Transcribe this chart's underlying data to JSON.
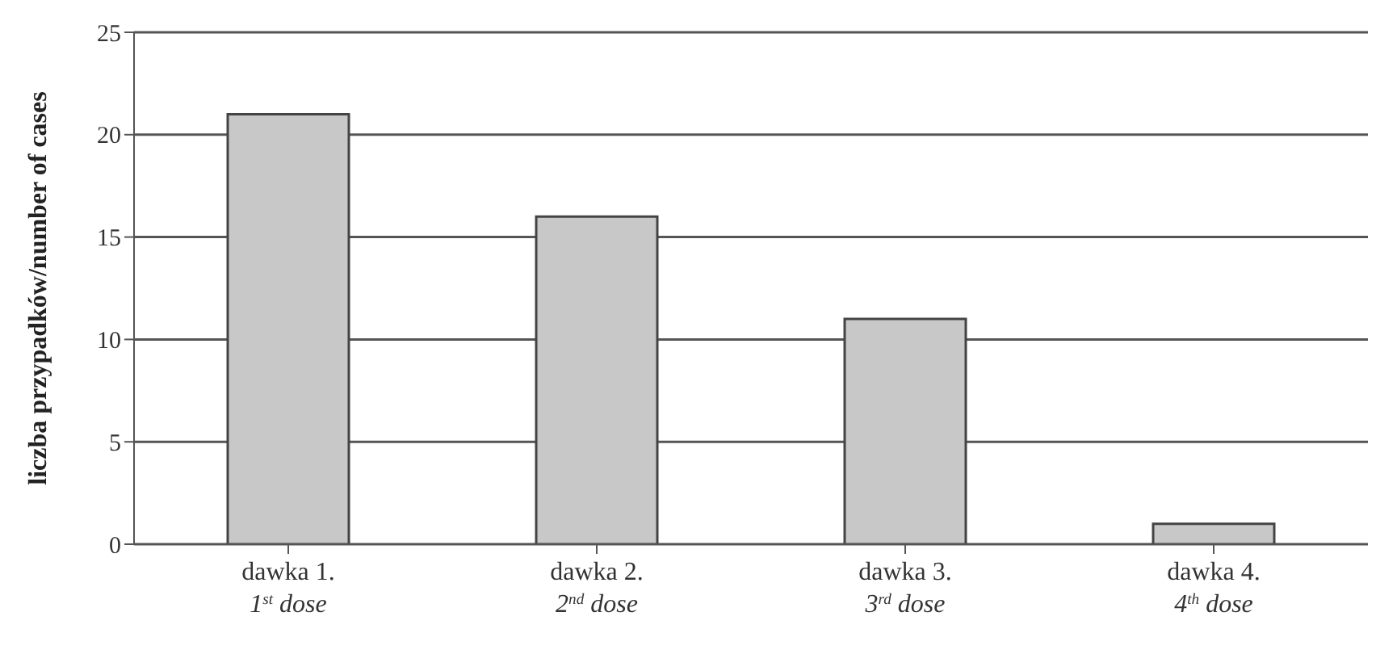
{
  "chart_data": {
    "type": "bar",
    "categories": [
      "dawka 1.\n1$^{st}$ dose",
      "dawka 2.\n2$^{nd}$ dose",
      "dawka 3.\n3$^{rd}$ dose",
      "dawka 4.\n4$^{th}$ dose"
    ],
    "values": [
      21,
      16,
      11,
      1
    ],
    "color": "#c8c8c8",
    "ylabel": "liczba przypadków/number of cases",
    "ylim": [
      0,
      25
    ],
    "yticks": [
      0,
      5,
      10,
      15,
      20,
      25
    ],
    "grid": "y"
  }
}
